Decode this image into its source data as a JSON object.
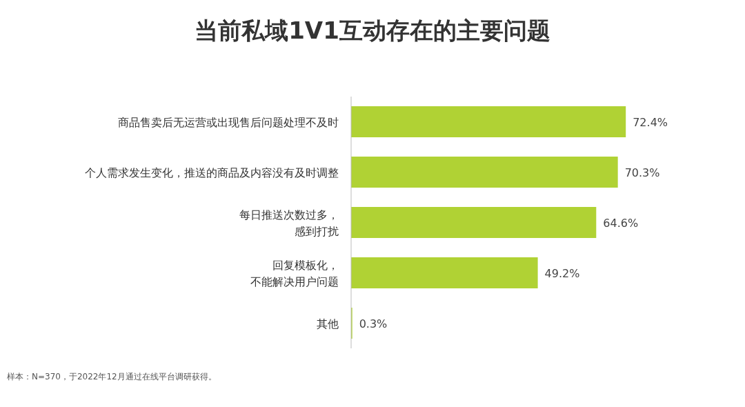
{
  "chart_data": {
    "type": "bar",
    "orientation": "horizontal",
    "relative": false,
    "title": "当前私域1V1互动存在的主要问题",
    "categories": [
      "商品售卖后无运营或出现售后问题处理不及时",
      "个人需求发生变化，推送的商品及内容没有及时调整",
      "每日推送次数过多，感到打扰",
      "回复模板化，不能解决用户问题",
      "其他"
    ],
    "values": [
      72.4,
      70.3,
      64.6,
      49.2,
      0.3
    ],
    "value_labels": [
      "72.4%",
      "70.3%",
      "64.6%",
      "49.2%",
      "0.3%"
    ],
    "color": "#b0d234",
    "annotations": [
      "样本：N=370，于2022年12月通过在线平台调研获得。"
    ]
  }
}
